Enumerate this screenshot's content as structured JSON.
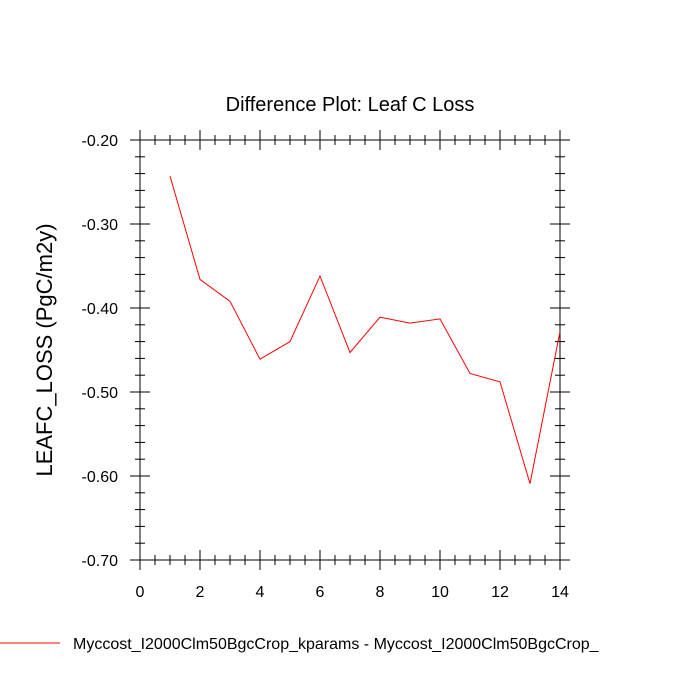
{
  "chart_data": {
    "type": "line",
    "title": "Difference Plot: Leaf C Loss",
    "xlabel": "",
    "ylabel": "LEAFC_LOSS  (PgC/m2y)",
    "xlim": [
      0,
      14
    ],
    "ylim": [
      -0.7,
      -0.2
    ],
    "x_ticks": [
      0,
      2,
      4,
      6,
      8,
      10,
      12,
      14
    ],
    "x_tick_labels": [
      "0",
      "2",
      "4",
      "6",
      "8",
      "10",
      "12",
      "14"
    ],
    "y_ticks": [
      -0.7,
      -0.6,
      -0.5,
      -0.4,
      -0.3,
      -0.2
    ],
    "y_tick_labels": [
      "-0.70",
      "-0.60",
      "-0.50",
      "-0.40",
      "-0.30",
      "-0.20"
    ],
    "grid": false,
    "legend_position": "bottom",
    "series": [
      {
        "name": "Myccost_I2000Clm50BgcCrop_kparams - Myccost_I2000Clm50BgcCrop_",
        "color": "#ff0000",
        "x": [
          1,
          2,
          3,
          4,
          5,
          6,
          7,
          8,
          9,
          10,
          11,
          12,
          13,
          14
        ],
        "values": [
          -0.243,
          -0.366,
          -0.392,
          -0.461,
          -0.44,
          -0.362,
          -0.453,
          -0.411,
          -0.418,
          -0.413,
          -0.478,
          -0.488,
          -0.609,
          -0.428
        ]
      }
    ]
  }
}
